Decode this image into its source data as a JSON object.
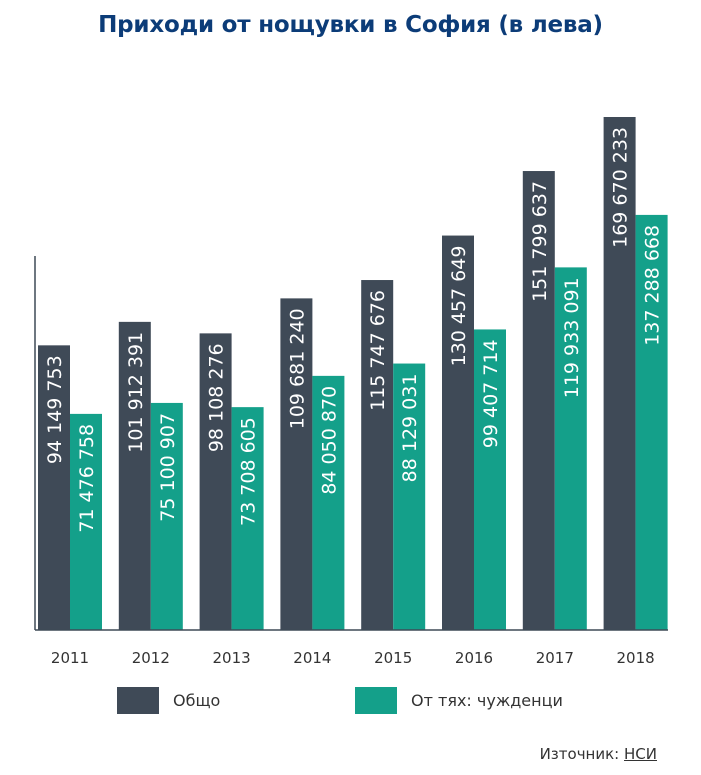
{
  "chart_data": {
    "type": "bar",
    "title": "Приходи от нощувки в София (в лева)",
    "categories": [
      "2011",
      "2012",
      "2013",
      "2014",
      "2015",
      "2016",
      "2017",
      "2018"
    ],
    "series": [
      {
        "name": "Общо",
        "color": "#3f4a57",
        "values": [
          94149753,
          101912391,
          98108276,
          109681240,
          115747676,
          130457649,
          151799637,
          169670233
        ],
        "labels": [
          "94 149 753",
          "101 912 391",
          "98 108 276",
          "109 681 240",
          "115 747 676",
          "130 457 649",
          "151 799 637",
          "169 670 233"
        ]
      },
      {
        "name": "От тях: чужденци",
        "color": "#14a08a",
        "values": [
          71476758,
          75100907,
          73708605,
          84050870,
          88129031,
          99407714,
          119933091,
          137288668
        ],
        "labels": [
          "71 476 758",
          "75 100 907",
          "73 708 605",
          "84 050 870",
          "88 129 031",
          "99 407 714",
          "119 933 091",
          "137 288 668"
        ]
      }
    ],
    "xlabel": "",
    "ylabel": "",
    "grid": false,
    "legend_position": "bottom"
  },
  "source": {
    "prefix": "Източник:",
    "link": "НСИ"
  }
}
